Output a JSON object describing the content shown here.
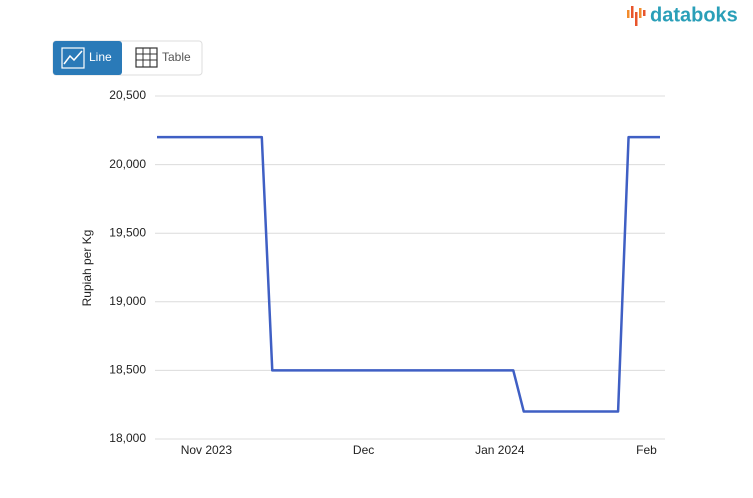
{
  "ui": {
    "logo": "databoks",
    "tabs": [
      "Line",
      "Table"
    ]
  },
  "chart_data": {
    "type": "line",
    "y_label": "Rupiah per Kg",
    "categories": [
      null,
      null,
      null,
      null,
      null,
      "Nov 2023",
      null,
      null,
      null,
      null,
      null,
      null,
      null,
      null,
      null,
      null,
      null,
      null,
      null,
      null,
      "Dec",
      null,
      null,
      null,
      null,
      null,
      null,
      null,
      null,
      null,
      null,
      null,
      null,
      "Jan 2024",
      null,
      null,
      null,
      null,
      null,
      null,
      null,
      null,
      null,
      null,
      null,
      null,
      null,
      "Feb",
      null
    ],
    "series": [
      {
        "name": "Rupiah per Kg",
        "color": "#3f5fc4",
        "values": [
          20200,
          20200,
          20200,
          20200,
          20200,
          20200,
          20200,
          20200,
          20200,
          20200,
          20200,
          18500,
          18500,
          18500,
          18500,
          18500,
          18500,
          18500,
          18500,
          18500,
          18500,
          18500,
          18500,
          18500,
          18500,
          18500,
          18500,
          18500,
          18500,
          18500,
          18500,
          18500,
          18500,
          18500,
          18500,
          18200,
          18200,
          18200,
          18200,
          18200,
          18200,
          18200,
          18200,
          18200,
          18200,
          20200,
          20200,
          20200,
          20200
        ]
      }
    ],
    "ylim": [
      18000,
      20500
    ],
    "yticks": [
      {
        "value": 18000,
        "label": "18,000"
      },
      {
        "value": 18500,
        "label": "18,500"
      },
      {
        "value": 19000,
        "label": "19,000"
      },
      {
        "value": 19500,
        "label": "19,500"
      },
      {
        "value": 20000,
        "label": "20,000"
      },
      {
        "value": 20500,
        "label": "20,500"
      }
    ],
    "grid": true
  }
}
